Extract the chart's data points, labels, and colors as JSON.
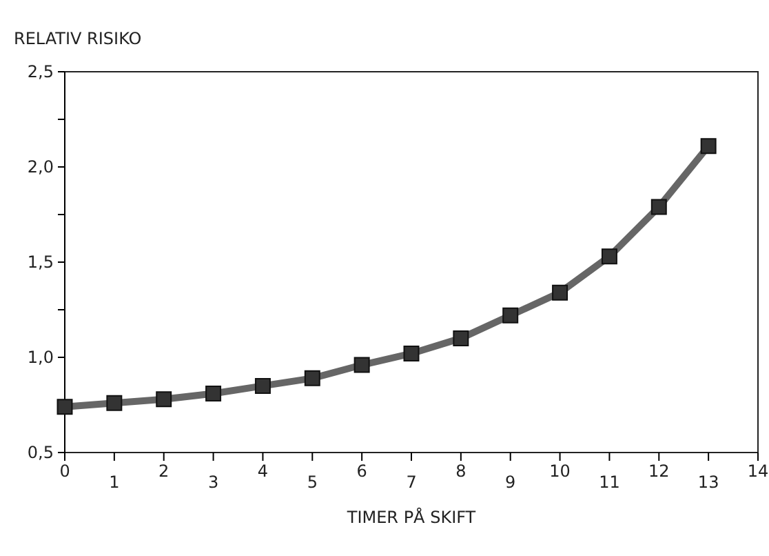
{
  "chart_data": {
    "type": "line",
    "ylabel": "RELATIV RISIKO",
    "xlabel": "TIMER PÅ SKIFT",
    "x": [
      0,
      1,
      2,
      3,
      4,
      5,
      6,
      7,
      8,
      9,
      10,
      11,
      12,
      13
    ],
    "series": [
      {
        "color": "#666666",
        "values": [
          0.74,
          0.76,
          0.78,
          0.81,
          0.85,
          0.89,
          0.96,
          1.02,
          1.1,
          1.22,
          1.34,
          1.53,
          1.79,
          2.11
        ]
      }
    ],
    "xlim": [
      0,
      14
    ],
    "xticks": [
      0,
      {
        "value": 1,
        "label": null
      },
      2,
      {
        "value": 3,
        "label": null
      },
      4,
      {
        "value": 5,
        "label": null
      },
      6,
      {
        "value": 7,
        "label": null
      },
      8,
      {
        "value": 9,
        "label": null
      },
      10,
      {
        "value": 11,
        "label": null
      },
      12,
      {
        "value": 13,
        "label": null
      },
      14
    ],
    "x2lim": [
      0,
      14
    ],
    "x2ticks": [
      1,
      3,
      5,
      7,
      9,
      11,
      13
    ],
    "ylim": [
      0.5,
      2.5
    ],
    "yticks": [
      {
        "value": 0.5,
        "label": "0,5"
      },
      {
        "value": 0.75,
        "label": null
      },
      {
        "value": 1,
        "label": "1,0"
      },
      {
        "value": 1.25,
        "label": null
      },
      {
        "value": 1.5,
        "label": "1,5"
      },
      {
        "value": 1.75,
        "label": null
      },
      {
        "value": 2,
        "label": "2,0"
      },
      {
        "value": 2.25,
        "label": null
      },
      {
        "value": 2.5,
        "label": "2,5"
      }
    ],
    "marker": "square",
    "line_style": "solid",
    "grid": false
  }
}
